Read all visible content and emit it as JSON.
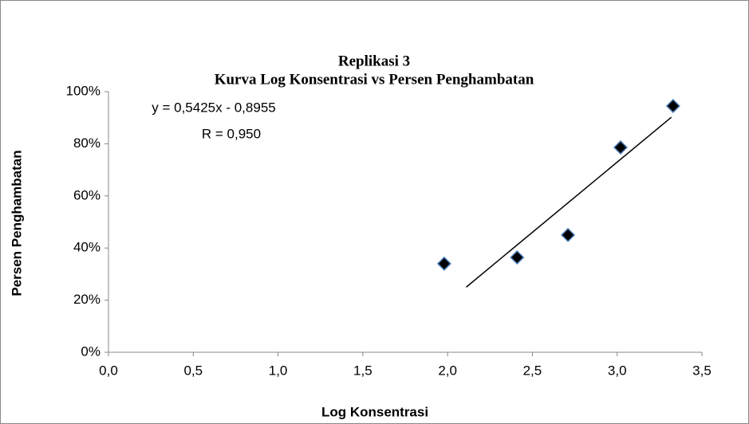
{
  "chart_data": {
    "type": "scatter",
    "title": "Replikasi  3",
    "subtitle": "Kurva Log Konsentrasi vs Persen Penghambatan",
    "x_label": "Log Konsentrasi",
    "y_label": "Persen Penghambatan",
    "annotations": [
      "y = 0,5425x - 0,8955",
      "R = 0,950"
    ],
    "series": [
      {
        "name": "Persen Penghambatan",
        "color": "#000000",
        "x": [
          1.98,
          2.41,
          2.71,
          3.02,
          3.33
        ],
        "values": [
          34,
          36.4,
          45,
          78.6,
          94.5
        ]
      },
      {
        "name": "Linear",
        "color": "#000000",
        "x": [
          2.11,
          3.32
        ],
        "values": [
          25,
          90.2
        ]
      }
    ],
    "xlim": [
      0,
      3.5
    ],
    "xticks": [
      {
        "value": 0,
        "label": "0,0"
      },
      {
        "value": 0.5,
        "label": "0,5"
      },
      {
        "value": 1,
        "label": "1,0"
      },
      {
        "value": 1.5,
        "label": "1,5"
      },
      {
        "value": 2,
        "label": "2,0"
      },
      {
        "value": 2.5,
        "label": "2,5"
      },
      {
        "value": 3,
        "label": "3,0"
      },
      {
        "value": 3.5,
        "label": "3,5"
      }
    ],
    "ylim": [
      0,
      100
    ],
    "yticks": [
      {
        "value": 0,
        "label": "0%"
      },
      {
        "value": 20,
        "label": "20%"
      },
      {
        "value": 40,
        "label": "40%"
      },
      {
        "value": 60,
        "label": "60%"
      },
      {
        "value": 80,
        "label": "80%"
      },
      {
        "value": 100,
        "label": "100%"
      }
    ]
  }
}
